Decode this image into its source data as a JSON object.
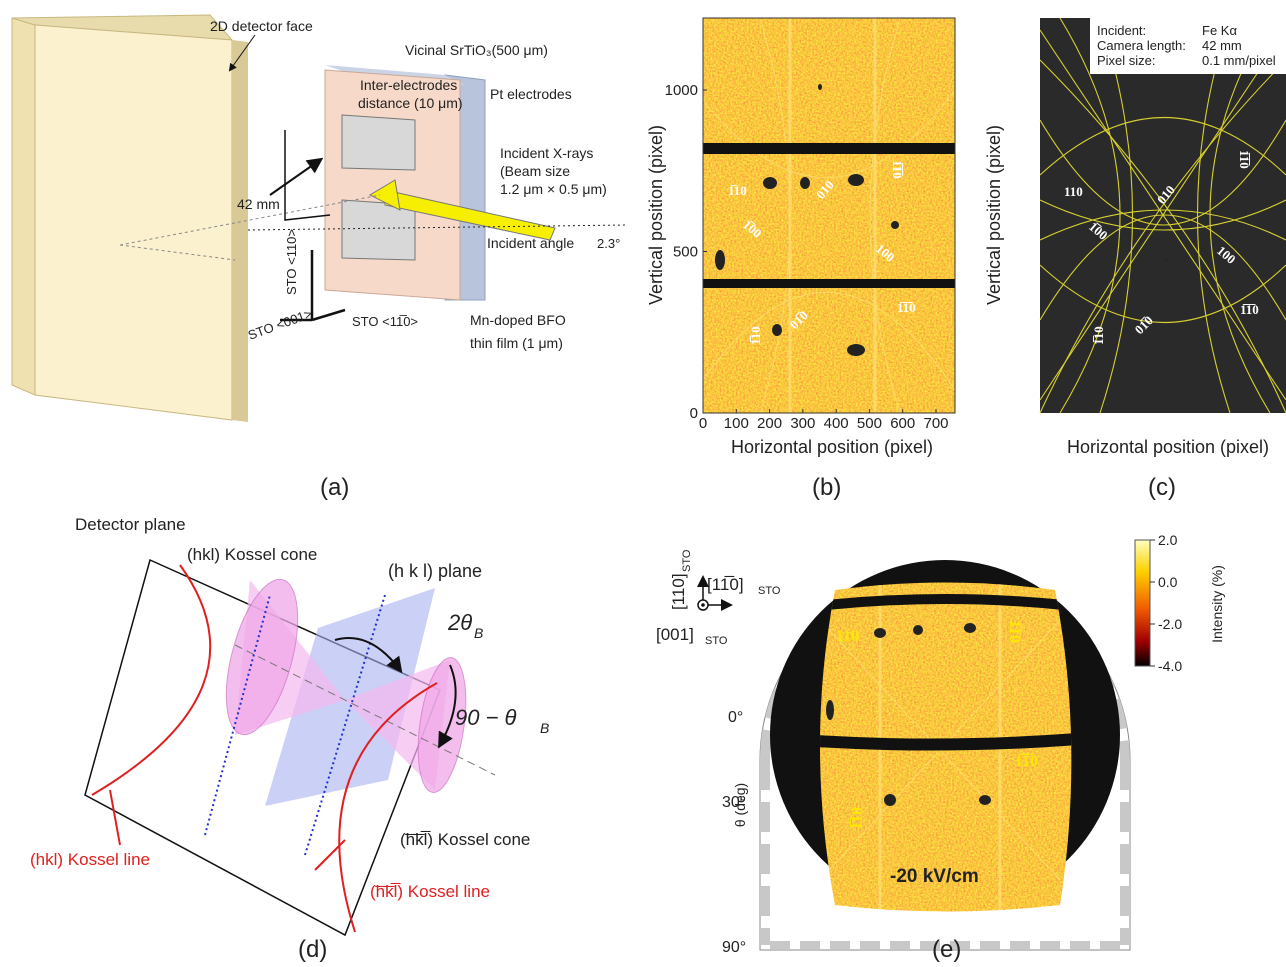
{
  "panel_a": {
    "detector_label": "2D detector face",
    "substrate_label": "Vicinal SrTiO₃(500 μm)",
    "gap_label": [
      "Inter-electrodes",
      "distance (10 μm)"
    ],
    "electrode_label": "Pt electrodes",
    "xray_label": [
      "Incident X-rays",
      "(Beam size",
      "1.2 μm × 0.5 μm)"
    ],
    "distance_label": "42 mm",
    "angle_label": "Incident angle",
    "angle_value": "2.3°",
    "axis_110": "STO <110>",
    "axis_001": "STO <001>",
    "axis_1bar10": "STO <11̅0>",
    "film_label": [
      "Mn-doped BFO",
      "thin film (1 μm)"
    ],
    "caption": "(a)"
  },
  "panel_b": {
    "y_label": "Vertical position (pixel)",
    "x_label": "Horizontal position (pixel)",
    "xticks": [
      0,
      100,
      200,
      300,
      400,
      500,
      600,
      700
    ],
    "yticks": [
      0,
      500,
      1000
    ],
    "spot_labels": [
      "1̅1̅0",
      "1̅10",
      "010",
      "1̅00",
      "100",
      "1̅1̅0",
      "1̅10",
      "01̅0"
    ],
    "caption": "(b)"
  },
  "panel_c": {
    "info": [
      [
        "Incident:",
        "Fe Kα"
      ],
      [
        "Camera length:",
        "42 mm"
      ],
      [
        "Pixel size:",
        "0.1 mm/pixel"
      ]
    ],
    "y_label": "Vertical position (pixel)",
    "x_label": "Horizontal position (pixel)",
    "spot_labels": [
      "110",
      "010",
      "1̅1̅0",
      "1̅00",
      "100",
      "1̅1̅0",
      "1̅10",
      "01̅0"
    ],
    "caption": "(c)"
  },
  "panel_d": {
    "detector_plane": "Detector plane",
    "cone_hkl": "(hkl) Kossel cone",
    "plane_hkl": "(h k l) plane",
    "two_theta": "2θ",
    "two_theta_sub": "B",
    "ninety_minus": "90 − θ",
    "ninety_minus_sub": "B",
    "cone_bar": "(h̅k̅l̅) Kossel cone",
    "line_hkl": "(hkl) Kossel line",
    "line_bar": "(h̅k̅l̅) Kossel line",
    "caption": "(d)"
  },
  "panel_e": {
    "dir_110": "[110]",
    "dir_1bar10": "[11̅0]",
    "dir_001": "[001]",
    "dir_sub": "STO",
    "theta_ticks": [
      "0°",
      "30°",
      "90°"
    ],
    "theta_label": "θ (deg)",
    "colorbar_ticks": [
      "2.0",
      "0.0",
      "-2.0",
      "-4.0"
    ],
    "colorbar_label": "Intensity (%)",
    "field_label": "-20 kV/cm",
    "spot_labels": [
      "110",
      "1̅10",
      "1̅1̅0",
      "1̅10"
    ],
    "caption": "(e)"
  }
}
